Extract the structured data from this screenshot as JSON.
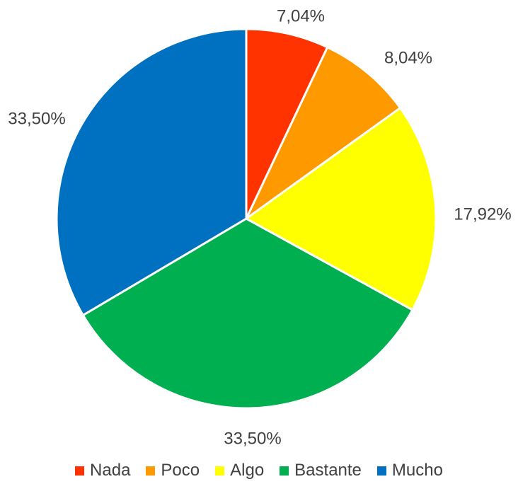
{
  "chart_data": {
    "type": "pie",
    "title": "",
    "start": "12 o'clock",
    "direction": "clockwise",
    "legend_position": "bottom",
    "slices": [
      {
        "name": "Nada",
        "value": 7.04,
        "label": "7,04%",
        "color": "#FF3300"
      },
      {
        "name": "Poco",
        "value": 8.04,
        "label": "8,04%",
        "color": "#FF9900"
      },
      {
        "name": "Algo",
        "value": 17.92,
        "label": "17,92%",
        "color": "#FFFF00"
      },
      {
        "name": "Bastante",
        "value": 33.5,
        "label": "33,50%",
        "color": "#00B050"
      },
      {
        "name": "Mucho",
        "value": 33.5,
        "label": "33,50%",
        "color": "#0070C0"
      }
    ]
  }
}
